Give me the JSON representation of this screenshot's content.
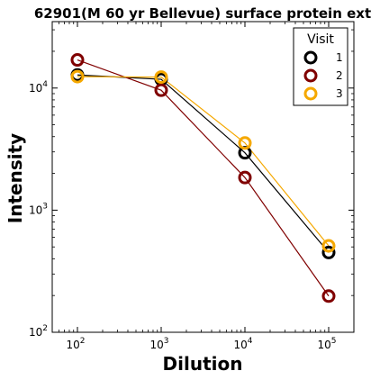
{
  "chart_data": {
    "type": "line",
    "title": "62901(M 60 yr Bellevue) surface protein ext",
    "xlabel": "Dilution",
    "ylabel": "Intensity",
    "xscale": "log",
    "yscale": "log",
    "xlim": [
      50,
      200000
    ],
    "ylim": [
      100,
      35000
    ],
    "xticks": [
      {
        "base": "10",
        "exp": "2",
        "value": 100
      },
      {
        "base": "10",
        "exp": "3",
        "value": 1000
      },
      {
        "base": "10",
        "exp": "4",
        "value": 10000
      },
      {
        "base": "10",
        "exp": "5",
        "value": 100000
      }
    ],
    "yticks": [
      {
        "base": "10",
        "exp": "2",
        "value": 100
      },
      {
        "base": "10",
        "exp": "3",
        "value": 1000
      },
      {
        "base": "10",
        "exp": "4",
        "value": 10000
      }
    ],
    "x": [
      100,
      1000,
      10000,
      100000
    ],
    "series": [
      {
        "name": "1",
        "color": "#000000",
        "values": [
          12800,
          11800,
          2950,
          450
        ]
      },
      {
        "name": "2",
        "color": "#800000",
        "values": [
          17000,
          9600,
          1850,
          198
        ]
      },
      {
        "name": "3",
        "color": "#f5a800",
        "values": [
          12400,
          12300,
          3550,
          510
        ]
      }
    ],
    "legend": {
      "title": "Visit",
      "position": "top-right"
    },
    "grid": false
  }
}
